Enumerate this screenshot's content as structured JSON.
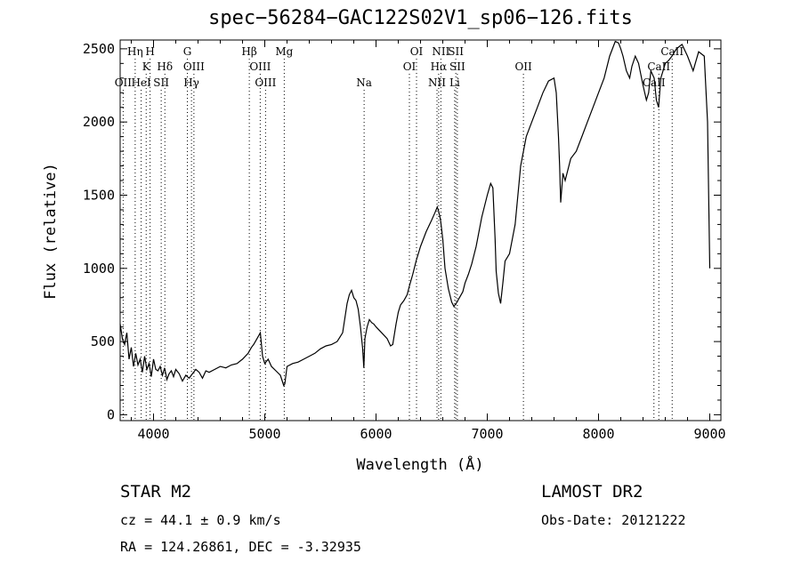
{
  "chart_data": {
    "type": "line",
    "title": "spec−56284−GAC122S02V1_sp06−126.fits",
    "xlabel": "Wavelength (Å)",
    "ylabel": "Flux (relative)",
    "xlim": [
      3700,
      9100
    ],
    "ylim": [
      -40,
      2560
    ],
    "xticks": [
      4000,
      5000,
      6000,
      7000,
      8000,
      9000
    ],
    "yticks": [
      0,
      500,
      1000,
      1500,
      2000,
      2500
    ],
    "grid": false,
    "series": [
      {
        "x": [
          3700,
          3720,
          3740,
          3760,
          3780,
          3800,
          3820,
          3840,
          3860,
          3880,
          3900,
          3920,
          3940,
          3960,
          3980,
          4000,
          4020,
          4040,
          4060,
          4080,
          4100,
          4120,
          4140,
          4160,
          4180,
          4200,
          4230,
          4260,
          4290,
          4320,
          4350,
          4380,
          4410,
          4440,
          4470,
          4500,
          4550,
          4600,
          4650,
          4700,
          4750,
          4800,
          4850,
          4880,
          4900,
          4930,
          4960,
          4980,
          5000,
          5030,
          5060,
          5100,
          5140,
          5170,
          5180,
          5200,
          5250,
          5300,
          5350,
          5400,
          5450,
          5500,
          5550,
          5600,
          5650,
          5700,
          5740,
          5760,
          5780,
          5800,
          5820,
          5840,
          5860,
          5880,
          5890,
          5900,
          5920,
          5940,
          5960,
          5980,
          6000,
          6050,
          6100,
          6130,
          6150,
          6180,
          6200,
          6220,
          6250,
          6280,
          6300,
          6330,
          6360,
          6400,
          6450,
          6500,
          6530,
          6550,
          6563,
          6580,
          6600,
          6620,
          6650,
          6680,
          6700,
          6720,
          6750,
          6780,
          6800,
          6830,
          6860,
          6900,
          6950,
          7000,
          7030,
          7050,
          7070,
          7080,
          7100,
          7120,
          7140,
          7160,
          7200,
          7250,
          7300,
          7350,
          7400,
          7450,
          7500,
          7550,
          7600,
          7620,
          7640,
          7650,
          7660,
          7680,
          7700,
          7750,
          7800,
          7850,
          7900,
          7950,
          8000,
          8050,
          8100,
          8150,
          8180,
          8200,
          8220,
          8250,
          8280,
          8300,
          8330,
          8360,
          8400,
          8430,
          8450,
          8470,
          8500,
          8520,
          8540,
          8560,
          8600,
          8630,
          8660,
          8700,
          8750,
          8800,
          8850,
          8900,
          8950,
          8980,
          9000
        ],
        "values": [
          620,
          520,
          480,
          560,
          380,
          460,
          330,
          420,
          340,
          380,
          290,
          400,
          310,
          350,
          260,
          380,
          310,
          300,
          330,
          270,
          320,
          240,
          280,
          300,
          260,
          310,
          280,
          230,
          270,
          250,
          280,
          310,
          290,
          250,
          300,
          290,
          310,
          330,
          320,
          340,
          350,
          380,
          420,
          460,
          480,
          520,
          560,
          400,
          350,
          380,
          330,
          300,
          270,
          200,
          210,
          330,
          350,
          360,
          380,
          400,
          420,
          450,
          470,
          480,
          500,
          560,
          760,
          820,
          850,
          800,
          780,
          720,
          600,
          450,
          320,
          520,
          600,
          650,
          630,
          620,
          600,
          560,
          520,
          470,
          480,
          620,
          700,
          750,
          780,
          820,
          880,
          960,
          1050,
          1150,
          1250,
          1330,
          1380,
          1420,
          1390,
          1330,
          1200,
          1000,
          860,
          770,
          740,
          760,
          800,
          840,
          900,
          960,
          1030,
          1150,
          1350,
          1500,
          1580,
          1550,
          1200,
          980,
          830,
          760,
          900,
          1050,
          1100,
          1300,
          1700,
          1900,
          2000,
          2100,
          2200,
          2280,
          2300,
          2200,
          1900,
          1700,
          1450,
          1650,
          1600,
          1750,
          1800,
          1900,
          2000,
          2100,
          2200,
          2300,
          2450,
          2550,
          2540,
          2500,
          2450,
          2350,
          2300,
          2380,
          2450,
          2400,
          2250,
          2150,
          2200,
          2350,
          2300,
          2150,
          2100,
          2300,
          2400,
          2420,
          2450,
          2500,
          2530,
          2450,
          2350,
          2480,
          2450,
          2000,
          1000
        ]
      }
    ],
    "lines": [
      {
        "label": "OII",
        "wave": 3727,
        "row": 3,
        "color": "#000000"
      },
      {
        "label": "Hη",
        "wave": 3835,
        "row": 1,
        "color": "#000000"
      },
      {
        "label": "H",
        "wave": 3969,
        "row": 1,
        "color": "#000000"
      },
      {
        "label": "K",
        "wave": 3934,
        "row": 2,
        "color": "#000000"
      },
      {
        "label": "HeI",
        "wave": 3889,
        "row": 3,
        "color": "#000000"
      },
      {
        "label": "SII",
        "wave": 4069,
        "row": 3,
        "color": "#000000"
      },
      {
        "label": "Hδ",
        "wave": 4102,
        "row": 2,
        "color": "#000000"
      },
      {
        "label": "G",
        "wave": 4304,
        "row": 1,
        "color": "#000000"
      },
      {
        "label": "OIII",
        "wave": 4363,
        "row": 2,
        "color": "#000000"
      },
      {
        "label": "Hγ",
        "wave": 4341,
        "row": 3,
        "color": "#000000"
      },
      {
        "label": "Hβ",
        "wave": 4861,
        "row": 1,
        "color": "#000000"
      },
      {
        "label": "OIII",
        "wave": 4959,
        "row": 2,
        "color": "#000000"
      },
      {
        "label": "OIII",
        "wave": 5007,
        "row": 3,
        "color": "#000000"
      },
      {
        "label": "Mg",
        "wave": 5175,
        "row": 1,
        "color": "#000000"
      },
      {
        "label": "Na",
        "wave": 5893,
        "row": 3,
        "color": "#000000"
      },
      {
        "label": "OI",
        "wave": 6300,
        "row": 2,
        "color": "#000000"
      },
      {
        "label": "OI",
        "wave": 6364,
        "row": 1,
        "color": "#000000"
      },
      {
        "label": "NII",
        "wave": 6548,
        "row": 3,
        "color": "#000000"
      },
      {
        "label": "Hα",
        "wave": 6563,
        "row": 2,
        "color": "#000000"
      },
      {
        "label": "NII",
        "wave": 6583,
        "row": 1,
        "color": "#000000"
      },
      {
        "label": "SII",
        "wave": 6717,
        "row": 1,
        "color": "#000000"
      },
      {
        "label": "SII",
        "wave": 6731,
        "row": 2,
        "color": "#000000"
      },
      {
        "label": "Li",
        "wave": 6707,
        "row": 3,
        "color": "#000000"
      },
      {
        "label": "OII",
        "wave": 7325,
        "row": 2,
        "color": "#000000"
      },
      {
        "label": "CaII",
        "wave": 8498,
        "row": 3,
        "color": "#000000"
      },
      {
        "label": "CaII",
        "wave": 8542,
        "row": 2,
        "color": "#000000"
      },
      {
        "label": "CaII",
        "wave": 8662,
        "row": 1,
        "color": "#000000"
      }
    ]
  },
  "footer": {
    "object": "STAR    M2",
    "survey": "LAMOST DR2",
    "cz": "cz = 44.1 ± 0.9 km/s",
    "obs_date": "Obs-Date: 20121222",
    "coords": "RA = 124.26861, DEC =  -3.32935"
  }
}
